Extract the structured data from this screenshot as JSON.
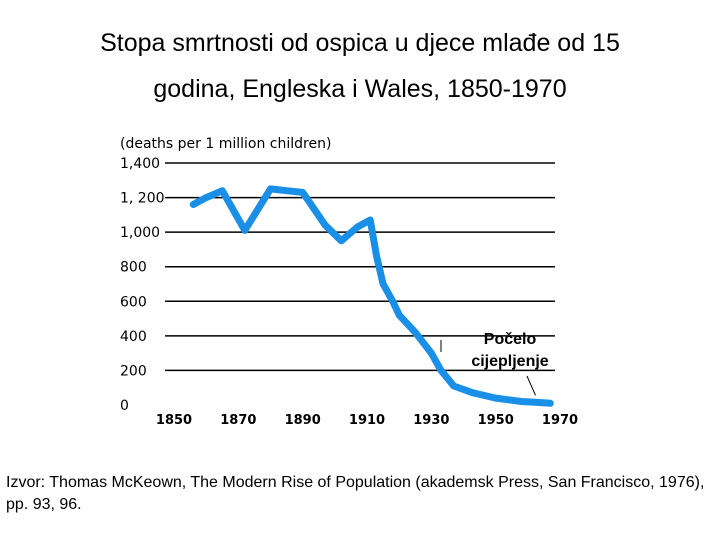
{
  "title_line1": "Stopa smrtnosti od ospica u djece mlađe od 15",
  "title_line2": "godina, Engleska i Wales, 1850-1970",
  "source": "Izvor: Thomas McKeown, The Modern Rise of Population (akademsk Press, San Francisco, 1976), pp. 93, 96.",
  "chart_data": {
    "type": "line",
    "title": "Stopa smrtnosti od ospica u djece mlađe od 15 godina, Engleska i Wales, 1850-1970",
    "ylabel": "(deaths per 1 million children)",
    "xlabel": "",
    "x_ticks": [
      1850,
      1870,
      1890,
      1910,
      1930,
      1950,
      1970
    ],
    "y_ticks": [
      0,
      200,
      400,
      600,
      800,
      1000,
      1200,
      1400
    ],
    "y_tick_labels": [
      "0",
      "200",
      "400",
      "600",
      "800",
      "1,000",
      "1, 200",
      "1,400"
    ],
    "xlim": [
      1850,
      1970
    ],
    "ylim": [
      0,
      1400
    ],
    "grid": "horizontal",
    "line_color": "#1a8fe8",
    "series": [
      {
        "x": [
          1856,
          1860,
          1865,
          1872,
          1880,
          1885,
          1890,
          1897,
          1902,
          1907,
          1911,
          1913,
          1915,
          1918,
          1920,
          1925,
          1930,
          1933,
          1937,
          1943,
          1950,
          1958,
          1963,
          1967
        ],
        "values": [
          1160,
          1200,
          1240,
          1010,
          1250,
          1240,
          1230,
          1040,
          950,
          1030,
          1070,
          860,
          700,
          600,
          520,
          420,
          300,
          200,
          110,
          70,
          40,
          20,
          15,
          10
        ]
      }
    ],
    "annotation": {
      "text_line1": "Počelo",
      "text_line2": "cijepljenje",
      "x": 1963,
      "y": 10
    }
  }
}
